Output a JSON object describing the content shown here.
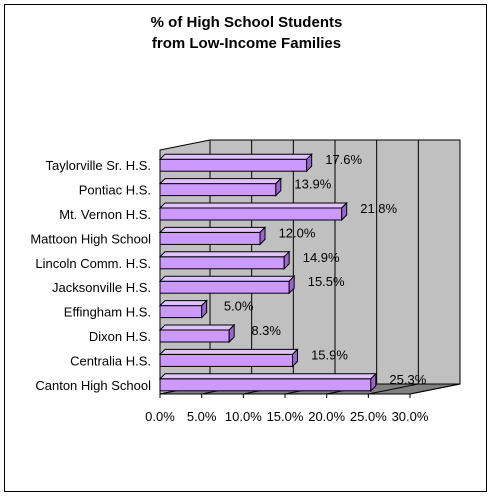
{
  "chart_data": {
    "type": "bar",
    "orientation": "horizontal",
    "title": [
      "% of High School Students",
      "from Low-Income Families"
    ],
    "categories": [
      "Taylorville Sr. H.S.",
      "Pontiac H.S.",
      "Mt. Vernon H.S.",
      "Mattoon High School",
      "Lincoln Comm. H.S.",
      "Jacksonville H.S.",
      "Effingham H.S.",
      "Dixon H.S.",
      "Centralia H.S.",
      "Canton High School"
    ],
    "values": [
      17.6,
      13.9,
      21.8,
      12.0,
      14.9,
      15.5,
      5.0,
      8.3,
      15.9,
      25.3
    ],
    "value_labels": [
      "17.6%",
      "13.9%",
      "21.8%",
      "12.0%",
      "14.9%",
      "15.5%",
      "5.0%",
      "8.3%",
      "15.9%",
      "25.3%"
    ],
    "xlim": [
      0,
      30
    ],
    "x_ticks": [
      "0.0%",
      "5.0%",
      "10.0%",
      "15.0%",
      "20.0%",
      "25.0%",
      "30.0%"
    ],
    "grid": true,
    "legend": "none",
    "colors": {
      "bar_front": "#cc99ff",
      "bar_top": "#e0c2ff",
      "bar_side": "#9966cc",
      "plot_back": "#c0c0c0",
      "plot_floor": "#808080"
    }
  }
}
